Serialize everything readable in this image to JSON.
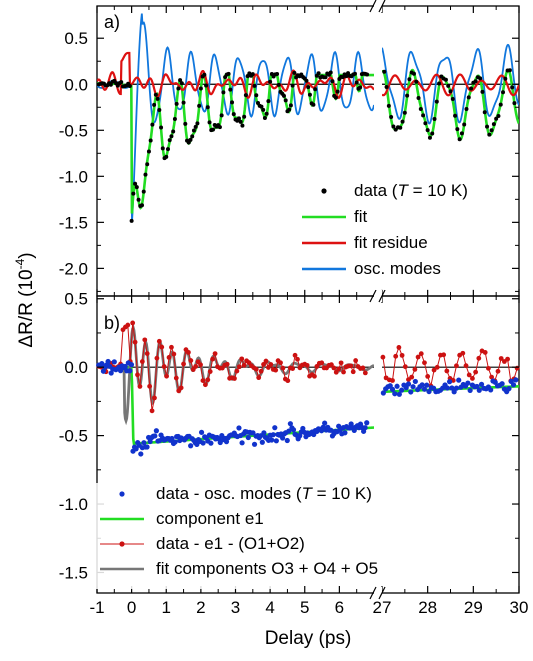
{
  "chart_data": [
    {
      "type": "line",
      "panel_label": "a)",
      "x_segments": [
        [
          -1,
          7
        ],
        [
          27,
          30
        ]
      ],
      "ylim": [
        -2.3,
        0.85
      ],
      "yticks": [
        0.5,
        0.0,
        -0.5,
        -1.0,
        -1.5,
        -2.0
      ],
      "ytick_labels": [
        "0.5",
        "0.0",
        "-0.5",
        "-1.0",
        "-1.5",
        "-2.0"
      ],
      "legend": [
        {
          "marker": "dot",
          "color": "#000000",
          "label_prefix": "data (",
          "label_italic": "T",
          "label_suffix": " = 10 K)"
        },
        {
          "marker": "line",
          "color": "#22dd22",
          "label": "fit"
        },
        {
          "marker": "line",
          "color": "#dd1111",
          "label": "fit residue"
        },
        {
          "marker": "line",
          "color": "#1177dd",
          "label": "osc. modes"
        }
      ],
      "series": [
        {
          "kind": "osc_modes",
          "color": "#1177dd",
          "seg1": {
            "amp0": 1.3,
            "decay": 0.35,
            "floor": 0.42,
            "freq": 1.45
          },
          "seg2": {
            "amp": 0.35,
            "freq": 1.45
          }
        },
        {
          "kind": "fit",
          "color": "#22dd22",
          "offset0": -0.55,
          "dip": -1.95
        },
        {
          "kind": "residue",
          "color": "#dd1111",
          "amp": 0.12
        },
        {
          "kind": "data",
          "color": "#000000",
          "marker": "dot"
        }
      ]
    },
    {
      "type": "line",
      "panel_label": "b)",
      "x_segments": [
        [
          -1,
          7
        ],
        [
          27,
          30
        ]
      ],
      "ylim": [
        -1.65,
        0.52
      ],
      "yticks": [
        0.5,
        0.0,
        -0.5,
        -1.0,
        -1.5
      ],
      "ytick_labels": [
        "0.5",
        "0.0",
        "-0.5",
        "-1.0",
        "-1.5"
      ],
      "legend": [
        {
          "marker": "dot",
          "color": "#1133cc",
          "label_prefix": "data - osc. modes (",
          "label_italic": "T",
          "label_suffix": " = 10 K)"
        },
        {
          "marker": "line",
          "color": "#22dd22",
          "label": "component e1"
        },
        {
          "marker": "dotline",
          "color": "#cc1111",
          "label": "data - e1 - (O1+O2)"
        },
        {
          "marker": "line",
          "color": "#777777",
          "label": "fit components O3 + O4 + O5"
        }
      ],
      "series": [
        {
          "kind": "component_e1",
          "color": "#22dd22",
          "seg1": [
            [
              0,
              -0.55
            ],
            [
              6.8,
              -0.44
            ]
          ],
          "seg2": [
            [
              27,
              -0.18
            ],
            [
              30,
              -0.14
            ]
          ]
        },
        {
          "kind": "data_minus_e1",
          "color": "#cc1111"
        },
        {
          "kind": "fit_O3_O4_O5",
          "color": "#777777"
        },
        {
          "kind": "data_minus_osc",
          "color": "#1133cc"
        }
      ]
    }
  ],
  "shared": {
    "xticks_seg1": [
      -1,
      0,
      1,
      2,
      3,
      4,
      5,
      6
    ],
    "xtick_labels_seg1": [
      "-1",
      "0",
      "1",
      "2",
      "3",
      "4",
      "5",
      "6"
    ],
    "xticks_seg2": [
      27,
      28,
      29,
      30
    ],
    "xtick_labels_seg2": [
      "27",
      "28",
      "29",
      "30"
    ],
    "xlabel": "Delay (ps)",
    "ylabel_prefix": "ΔR/R (10",
    "ylabel_exp": "-4",
    "ylabel_suffix": ")",
    "axis_break": "//"
  }
}
